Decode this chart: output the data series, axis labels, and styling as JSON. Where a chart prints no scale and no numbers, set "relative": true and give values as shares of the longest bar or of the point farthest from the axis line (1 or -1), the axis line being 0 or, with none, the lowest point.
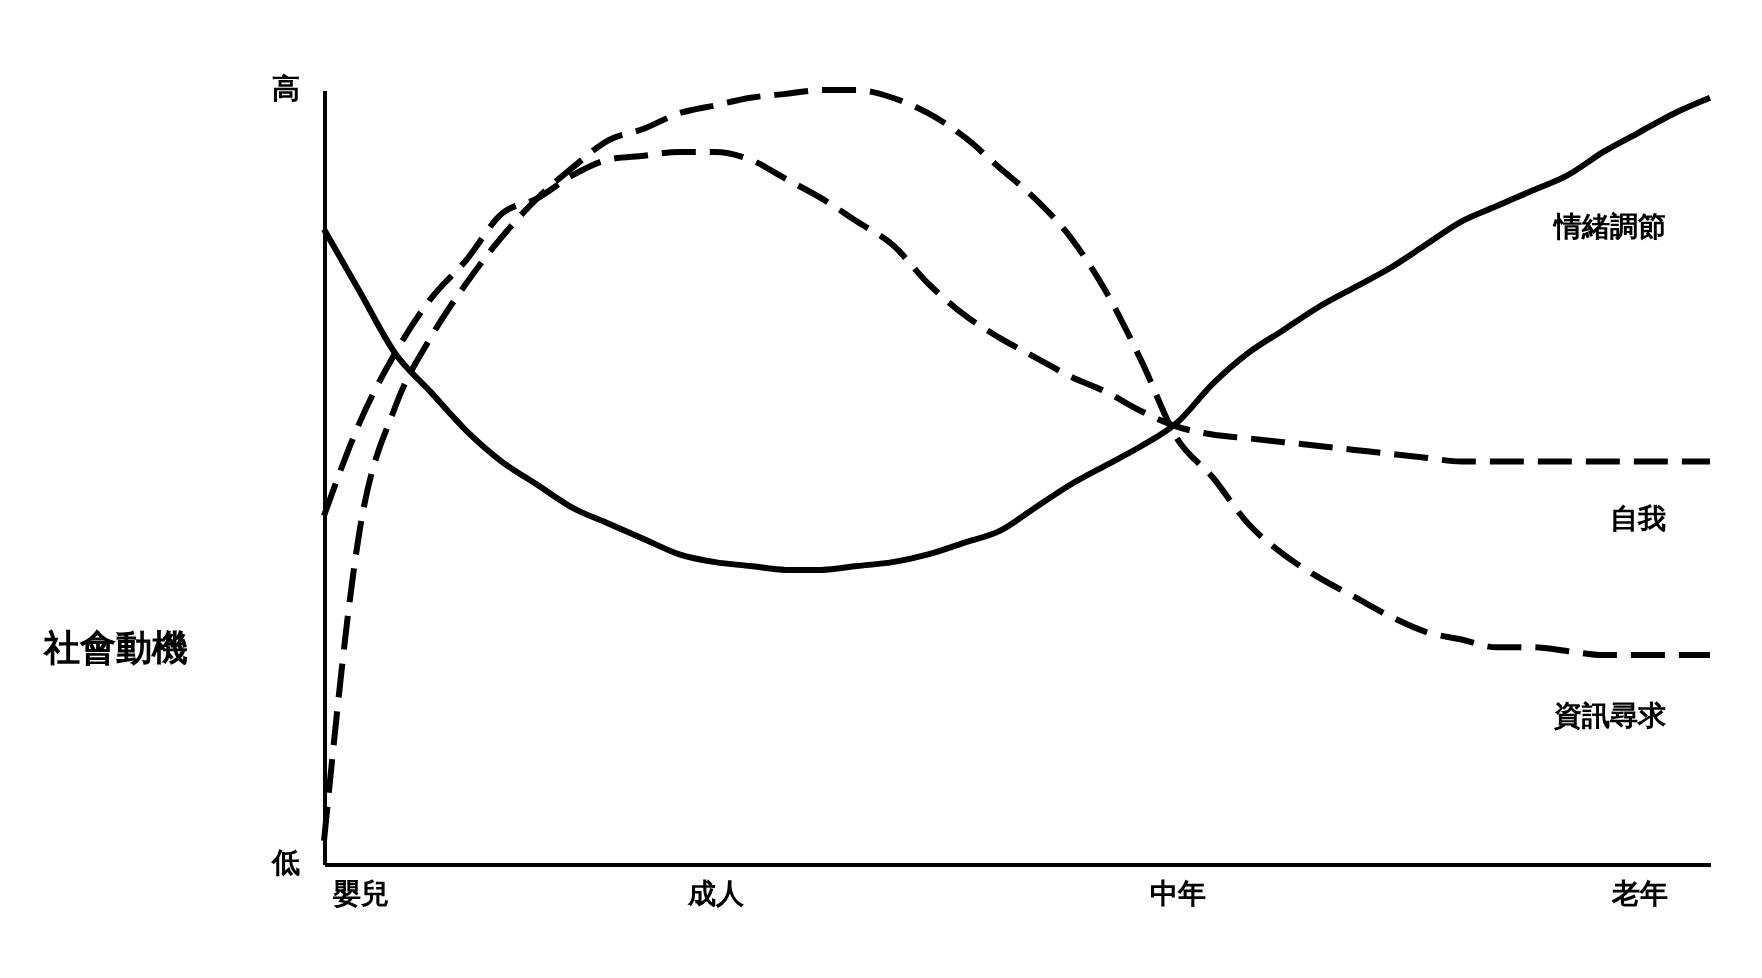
{
  "chart_data": {
    "type": "line",
    "relative": true,
    "ylabel": "社會動機",
    "legend": false,
    "grid": false,
    "annotations": [
      "高",
      "低"
    ],
    "categories": [
      null,
      "嬰兒",
      null,
      null,
      null,
      null,
      null,
      null,
      null,
      null,
      null,
      "成人",
      null,
      null,
      null,
      null,
      null,
      null,
      null,
      null,
      null,
      null,
      null,
      null,
      "中年",
      null,
      null,
      null,
      null,
      null,
      null,
      null,
      null,
      null,
      null,
      null,
      null,
      "老年",
      null,
      null
    ],
    "series": [
      {
        "name": "情緒調節",
        "color": "#000000",
        "line_style": "solid",
        "values": [
          0.82,
          0.74,
          0.66,
          0.61,
          0.56,
          0.52,
          0.49,
          0.46,
          0.44,
          0.42,
          0.4,
          0.39,
          0.385,
          0.38,
          0.38,
          0.385,
          0.39,
          0.4,
          0.415,
          0.43,
          0.46,
          0.49,
          0.515,
          0.54,
          0.57,
          0.62,
          0.66,
          0.69,
          0.72,
          0.745,
          0.77,
          0.8,
          0.83,
          0.85,
          0.87,
          0.89,
          0.92,
          0.945,
          0.97,
          0.99
        ]
      },
      {
        "name": "自我",
        "color": "#000000",
        "line_style": "dashed",
        "values": [
          0.45,
          0.57,
          0.66,
          0.73,
          0.78,
          0.84,
          0.86,
          0.89,
          0.91,
          0.915,
          0.92,
          0.92,
          0.91,
          0.885,
          0.86,
          0.83,
          0.8,
          0.75,
          0.71,
          0.68,
          0.655,
          0.63,
          0.61,
          0.585,
          0.565,
          0.555,
          0.55,
          0.545,
          0.54,
          0.535,
          0.53,
          0.525,
          0.52,
          0.52,
          0.52,
          0.52,
          0.52,
          0.52,
          0.52,
          0.52
        ]
      },
      {
        "name": "資訊尋求",
        "color": "#000000",
        "line_style": "dashed",
        "values": [
          0.03,
          0.43,
          0.59,
          0.68,
          0.75,
          0.81,
          0.86,
          0.9,
          0.935,
          0.95,
          0.97,
          0.98,
          0.99,
          0.995,
          1.0,
          1.0,
          0.99,
          0.97,
          0.94,
          0.9,
          0.86,
          0.81,
          0.74,
          0.65,
          0.55,
          0.5,
          0.44,
          0.4,
          0.37,
          0.345,
          0.32,
          0.3,
          0.29,
          0.28,
          0.28,
          0.275,
          0.27,
          0.27,
          0.27,
          0.27
        ]
      }
    ]
  }
}
